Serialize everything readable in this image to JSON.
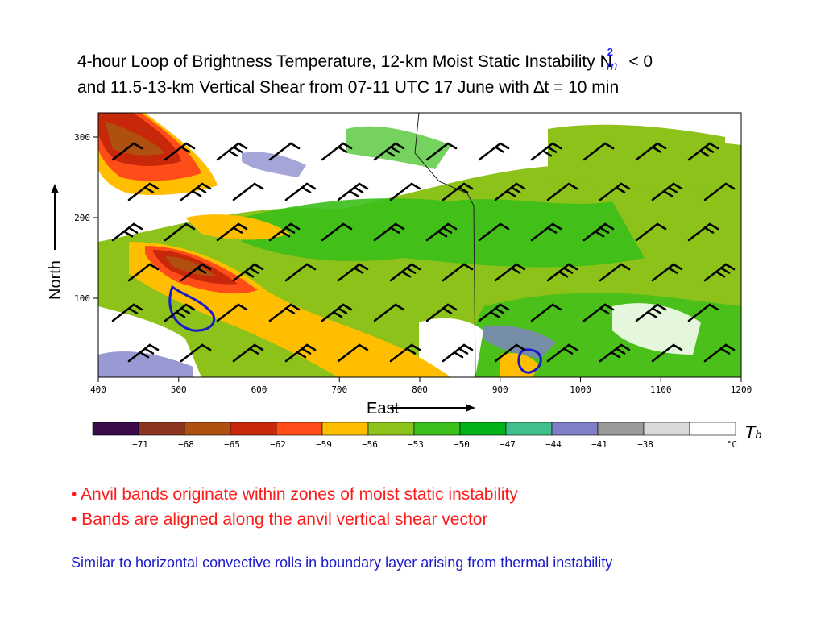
{
  "title": {
    "line1_main": "4-hour Loop of Brightness Temperature, 12-km Moist Static Instability N",
    "line1_sup": "2",
    "line1_sub": "m",
    "line1_tail": "< 0",
    "line2": "and 11.5-13-km Vertical Shear from 07-11 UTC 17 June with ∆t = 10 min"
  },
  "axes": {
    "y_label": "North",
    "x_label": "East",
    "x_ticks": [
      "400",
      "500",
      "600",
      "700",
      "800",
      "900",
      "1000",
      "1100",
      "1200"
    ],
    "y_ticks": [
      "300",
      "200",
      "100"
    ]
  },
  "colorbar": {
    "label_main": "T",
    "label_sub": "b",
    "unit": "°C",
    "ticks": [
      "−71",
      "−68",
      "−65",
      "−62",
      "−59",
      "−56",
      "−53",
      "−50",
      "−47",
      "−44",
      "−41",
      "−38"
    ],
    "colors": [
      "#3b0a4a",
      "#8b3520",
      "#b05010",
      "#c8280a",
      "#ff4d1a",
      "#ffbf00",
      "#8cc219",
      "#3bbf1a",
      "#00b31a",
      "#3fbf8a",
      "#7f7fc8",
      "#9a9a9a",
      "#d9d9d9",
      "#ffffff"
    ]
  },
  "bullets": [
    "• Anvil bands originate within zones of moist static instability",
    "• Bands are aligned along the anvil vertical shear vector"
  ],
  "note": "Similar to horizontal convective rolls in boundary layer arising from thermal instability"
}
